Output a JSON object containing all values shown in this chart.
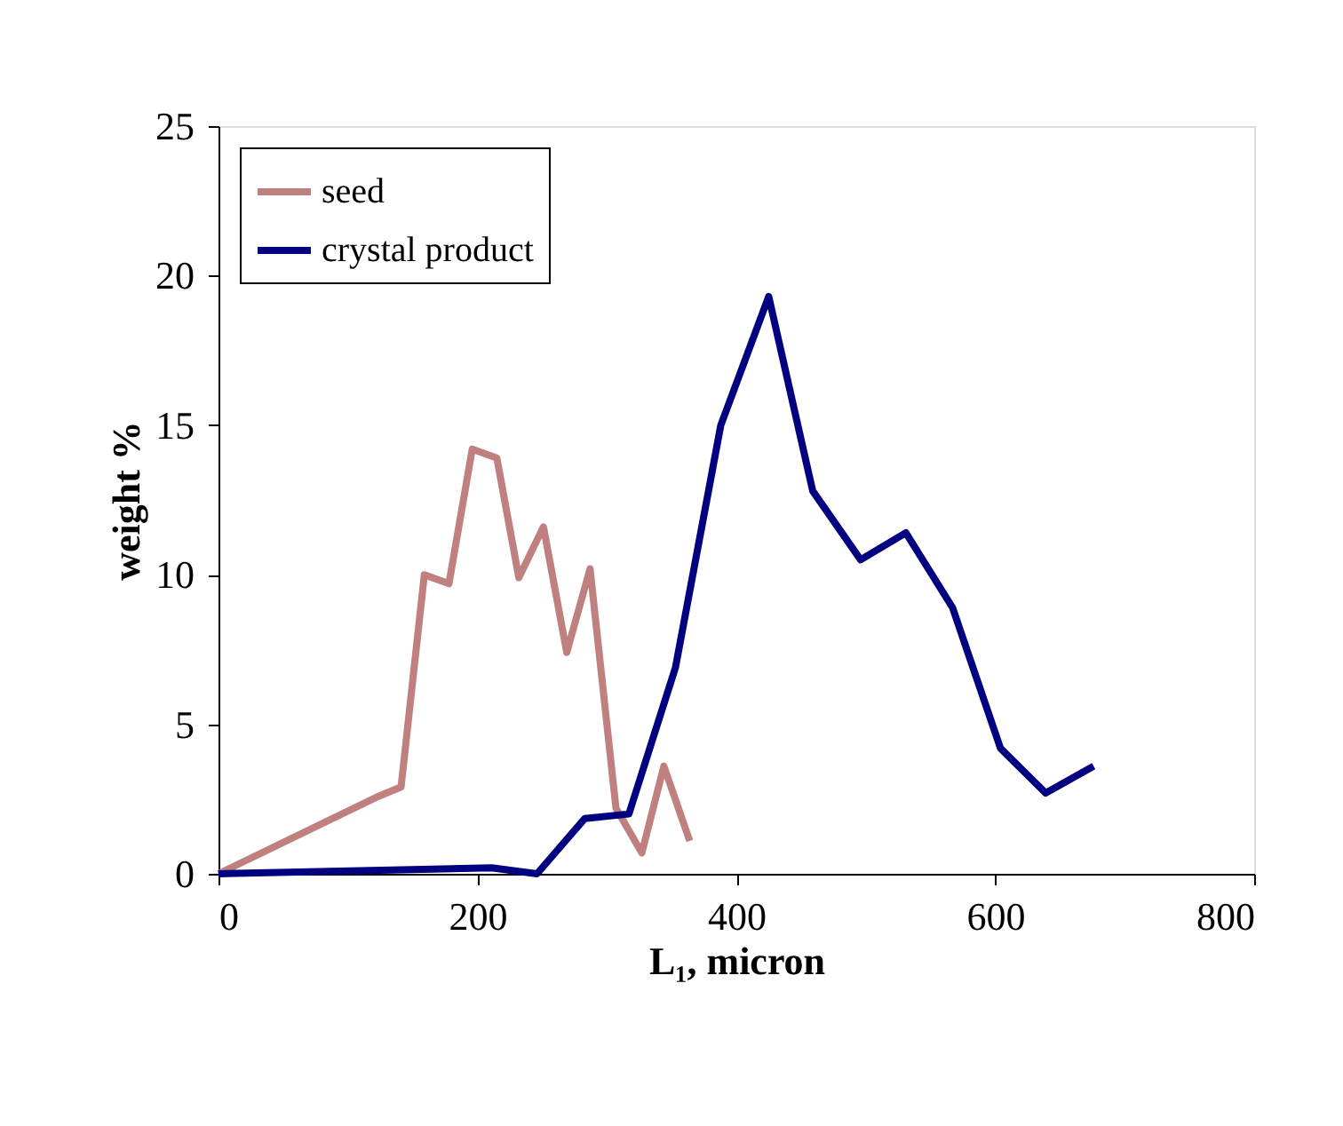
{
  "chart_data": {
    "type": "line",
    "xlabel": "L₁, micron",
    "ylabel": "weight %",
    "xlim": [
      0,
      800
    ],
    "xticks": [
      0,
      200,
      400,
      600,
      800
    ],
    "ylim": [
      0,
      25
    ],
    "yticks": [
      0,
      5,
      10,
      15,
      20,
      25
    ],
    "grid": false,
    "legend": "top left",
    "marker": "none",
    "line_style": "solid",
    "series": [
      {
        "name": "seed",
        "color": "#c08080",
        "x": [
          0,
          124,
          141,
          159,
          178,
          196,
          215,
          232,
          251,
          269,
          287,
          307,
          327,
          344,
          364
        ],
        "values": [
          0,
          2.6,
          2.9,
          10.0,
          9.7,
          14.2,
          13.9,
          9.9,
          11.6,
          7.4,
          10.2,
          2.2,
          0.7,
          3.6,
          1.1
        ]
      },
      {
        "name": "crystal product",
        "color": "#000080",
        "x": [
          0,
          211,
          246,
          283,
          317,
          353,
          388,
          425,
          459,
          496,
          531,
          567,
          604,
          639,
          676
        ],
        "values": [
          0,
          0.2,
          0,
          1.85,
          2.0,
          6.9,
          15.0,
          19.3,
          12.8,
          10.5,
          11.4,
          8.9,
          4.2,
          2.7,
          3.6
        ]
      }
    ]
  }
}
